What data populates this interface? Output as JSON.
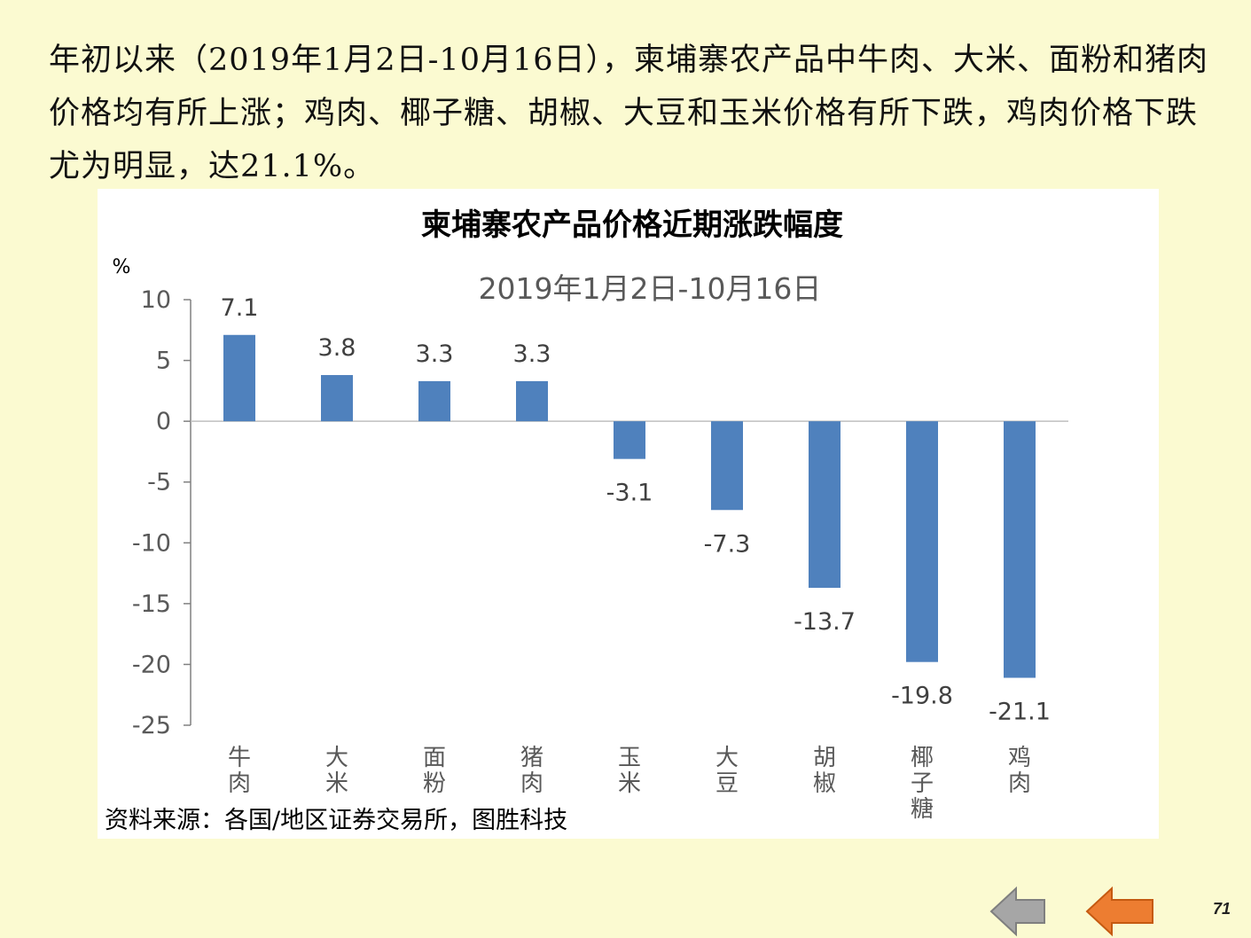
{
  "intro_text": "年初以来（2019年1月2日-10月16日），柬埔寨农产品中牛肉、大米、面粉和猪肉价格均有所上涨；鸡肉、椰子糖、胡椒、大豆和玉米价格有所下跌，鸡肉价格下跌尤为明显，达21.1%。",
  "source": "资料来源：各国/地区证券交易所，图胜科技",
  "page_number": "71",
  "nav": {
    "back_icon": "gray-left-arrow-icon",
    "prev_icon": "orange-left-arrow-icon"
  },
  "colors": {
    "background": "#fbfad1",
    "bar": "#4f81bd",
    "prev_arrow": "#ed7d31",
    "back_arrow": "#a6a6a6"
  },
  "chart_data": {
    "type": "bar",
    "title": "柬埔寨农产品价格近期涨跌幅度",
    "subtitle": "2019年1月2日-10月16日",
    "ylabel": "%",
    "xlabel": "",
    "ylim": [
      -25,
      10
    ],
    "yticks": [
      "10",
      "5",
      "0",
      "-5",
      "-10",
      "-15",
      "-20",
      "-25"
    ],
    "categories": [
      "牛肉",
      "大米",
      "面粉",
      "猪肉",
      "玉米",
      "大豆",
      "胡椒",
      "椰子糖",
      "鸡肉"
    ],
    "values": [
      7.1,
      3.8,
      3.3,
      3.3,
      -3.1,
      -7.3,
      -13.7,
      -19.8,
      -21.1
    ],
    "value_labels": [
      "7.1",
      "3.8",
      "3.3",
      "3.3",
      "-3.1",
      "-7.3",
      "-13.7",
      "-19.8",
      "-21.1"
    ],
    "grid": false,
    "legend": "none"
  }
}
